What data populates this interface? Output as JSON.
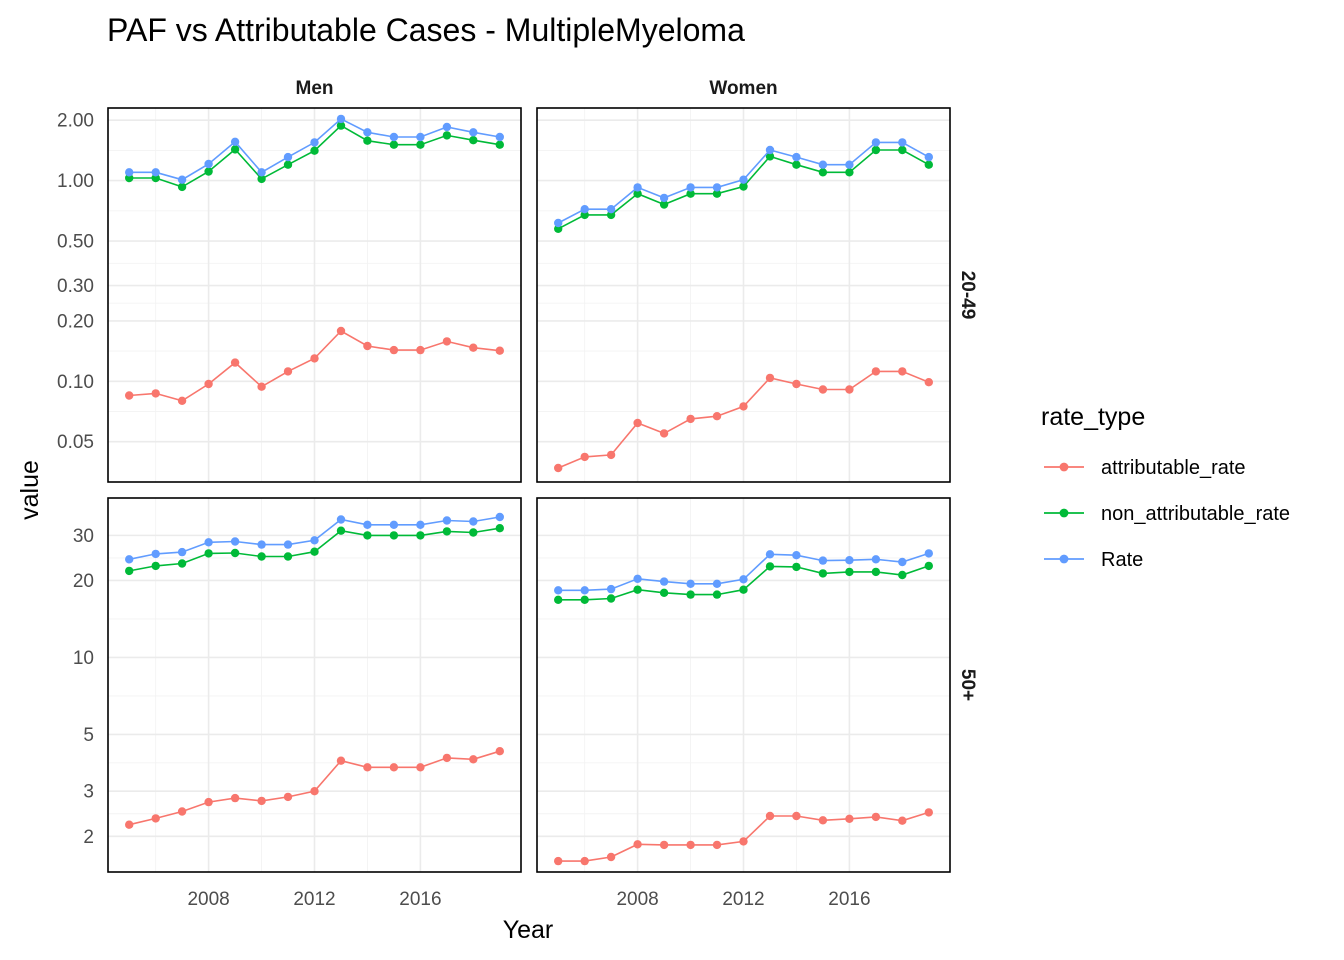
{
  "chart_data": {
    "type": "line",
    "title": "PAF vs Attributable Cases - MultipleMyeloma",
    "xlabel": "Year",
    "ylabel": "value",
    "y_scale": "log10",
    "facet_cols": [
      "Men",
      "Women"
    ],
    "facet_rows": [
      "20-49",
      "50+"
    ],
    "x_ticks": [
      2008,
      2012,
      2016
    ],
    "x_range": [
      2004.2,
      2019.8
    ],
    "legend": {
      "title": "rate_type",
      "position": "right",
      "entries": [
        {
          "key": "attributable_rate",
          "label": "attributable_rate",
          "color": "#F8766D"
        },
        {
          "key": "non_attributable_rate",
          "label": "non_attributable_rate",
          "color": "#00BA38"
        },
        {
          "key": "Rate",
          "label": "Rate",
          "color": "#619CFF"
        }
      ]
    },
    "rows": [
      {
        "name": "20-49",
        "y_range": [
          0.0315,
          2.3
        ],
        "y_ticks": [
          {
            "value": 0.05,
            "label": "0.05"
          },
          {
            "value": 0.1,
            "label": "0.10"
          },
          {
            "value": 0.2,
            "label": "0.20"
          },
          {
            "value": 0.3,
            "label": "0.30"
          },
          {
            "value": 0.5,
            "label": "0.50"
          },
          {
            "value": 1.0,
            "label": "1.00"
          },
          {
            "value": 2.0,
            "label": "2.00"
          }
        ]
      },
      {
        "name": "50+",
        "y_range": [
          1.45,
          42
        ],
        "y_ticks": [
          {
            "value": 2,
            "label": "2"
          },
          {
            "value": 3,
            "label": "3"
          },
          {
            "value": 5,
            "label": "5"
          },
          {
            "value": 10,
            "label": "10"
          },
          {
            "value": 20,
            "label": "20"
          },
          {
            "value": 30,
            "label": "30"
          }
        ]
      }
    ],
    "years": [
      2005,
      2006,
      2007,
      2008,
      2009,
      2010,
      2011,
      2012,
      2013,
      2014,
      2015,
      2016,
      2017,
      2018,
      2019
    ],
    "panels": [
      {
        "col": "Men",
        "row": "20-49",
        "series": {
          "attributable_rate": [
            0.085,
            0.087,
            0.08,
            0.097,
            0.124,
            0.094,
            0.112,
            0.13,
            0.178,
            0.15,
            0.143,
            0.143,
            0.158,
            0.147,
            0.142
          ],
          "non_attributable_rate": [
            1.03,
            1.03,
            0.93,
            1.11,
            1.43,
            1.02,
            1.2,
            1.41,
            1.88,
            1.58,
            1.51,
            1.51,
            1.68,
            1.59,
            1.51
          ],
          "Rate": [
            1.1,
            1.1,
            1.01,
            1.21,
            1.56,
            1.1,
            1.31,
            1.55,
            2.03,
            1.74,
            1.65,
            1.65,
            1.85,
            1.74,
            1.65
          ]
        }
      },
      {
        "col": "Women",
        "row": "20-49",
        "series": {
          "attributable_rate": [
            0.037,
            0.042,
            0.043,
            0.062,
            0.055,
            0.065,
            0.067,
            0.075,
            0.104,
            0.097,
            0.091,
            0.091,
            0.112,
            0.112,
            0.099
          ],
          "non_attributable_rate": [
            0.575,
            0.675,
            0.675,
            0.86,
            0.76,
            0.86,
            0.86,
            0.935,
            1.32,
            1.2,
            1.1,
            1.1,
            1.42,
            1.42,
            1.2
          ],
          "Rate": [
            0.615,
            0.72,
            0.72,
            0.925,
            0.82,
            0.925,
            0.925,
            1.01,
            1.42,
            1.31,
            1.2,
            1.2,
            1.55,
            1.55,
            1.31
          ]
        }
      },
      {
        "col": "Men",
        "row": "50+",
        "series": {
          "attributable_rate": [
            2.22,
            2.35,
            2.5,
            2.72,
            2.82,
            2.75,
            2.85,
            3.0,
            3.95,
            3.72,
            3.72,
            3.72,
            4.05,
            4.0,
            4.3
          ],
          "non_attributable_rate": [
            21.8,
            22.8,
            23.3,
            25.5,
            25.6,
            24.8,
            24.8,
            25.9,
            31.3,
            30.0,
            30.0,
            30.0,
            31.1,
            30.8,
            32.0
          ],
          "Rate": [
            24.2,
            25.4,
            25.8,
            28.2,
            28.4,
            27.6,
            27.6,
            28.7,
            34.6,
            33.0,
            33.0,
            33.0,
            34.3,
            34.0,
            35.4
          ]
        }
      },
      {
        "col": "Women",
        "row": "50+",
        "series": {
          "attributable_rate": [
            1.6,
            1.6,
            1.66,
            1.86,
            1.85,
            1.85,
            1.85,
            1.91,
            2.4,
            2.4,
            2.31,
            2.34,
            2.38,
            2.3,
            2.48
          ],
          "non_attributable_rate": [
            16.8,
            16.8,
            17.0,
            18.4,
            17.9,
            17.6,
            17.6,
            18.4,
            22.7,
            22.6,
            21.3,
            21.6,
            21.6,
            21.0,
            22.8
          ],
          "Rate": [
            18.3,
            18.3,
            18.5,
            20.3,
            19.8,
            19.4,
            19.4,
            20.2,
            25.3,
            25.1,
            23.9,
            24.0,
            24.2,
            23.6,
            25.5
          ]
        }
      }
    ]
  }
}
